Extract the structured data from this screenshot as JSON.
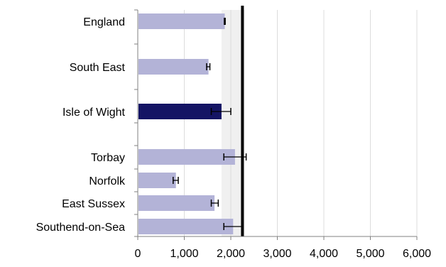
{
  "chart_data": {
    "type": "bar",
    "orientation": "horizontal",
    "title": "",
    "xlabel": "",
    "ylabel": "",
    "xlim": [
      0,
      6000
    ],
    "x_ticks": [
      0,
      1000,
      2000,
      3000,
      4000,
      5000,
      6000
    ],
    "x_tick_labels": [
      "0",
      "1,000",
      "2,000",
      "3,000",
      "4,000",
      "5,000",
      "6,000"
    ],
    "grid": "vertical",
    "reference_line": 2250,
    "shaded_range": [
      1800,
      2300
    ],
    "categories": [
      "England",
      "South East",
      "Isle of Wight",
      "Torbay",
      "Norfolk",
      "East Sussex",
      "Southend-on-Sea"
    ],
    "values": [
      1870,
      1520,
      1800,
      2090,
      820,
      1650,
      2050
    ],
    "error_low": [
      1860,
      1480,
      1580,
      1850,
      760,
      1580,
      1850
    ],
    "error_high": [
      1880,
      1550,
      2000,
      2330,
      870,
      1730,
      2250
    ],
    "highlight": "Isle of Wight",
    "colors": {
      "bar": "#b3b3d7",
      "highlight": "#141464",
      "error": "#000000",
      "reference": "#000000",
      "shade": "#f0f0f0",
      "grid": "#dcdcdc",
      "axis": "#808080"
    }
  }
}
